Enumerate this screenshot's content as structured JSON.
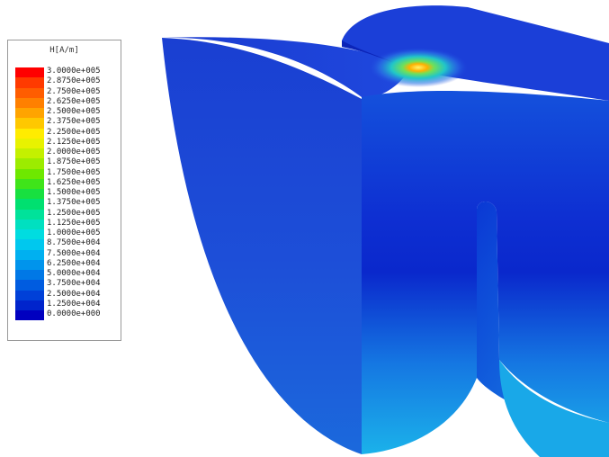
{
  "legend": {
    "title": "H[A/m]",
    "entries": [
      {
        "label": "3.0000e+005",
        "color": "#ff0000"
      },
      {
        "label": "2.8750e+005",
        "color": "#ff3a00"
      },
      {
        "label": "2.7500e+005",
        "color": "#ff5d00"
      },
      {
        "label": "2.6250e+005",
        "color": "#ff8000"
      },
      {
        "label": "2.5000e+005",
        "color": "#ffa400"
      },
      {
        "label": "2.3750e+005",
        "color": "#ffc800"
      },
      {
        "label": "2.2500e+005",
        "color": "#ffec00"
      },
      {
        "label": "2.1250e+005",
        "color": "#e8f200"
      },
      {
        "label": "2.0000e+005",
        "color": "#c4f000"
      },
      {
        "label": "1.8750e+005",
        "color": "#9cec00"
      },
      {
        "label": "1.7500e+005",
        "color": "#6ee800"
      },
      {
        "label": "1.6250e+005",
        "color": "#3fe41a"
      },
      {
        "label": "1.5000e+005",
        "color": "#18e040"
      },
      {
        "label": "1.3750e+005",
        "color": "#00e070"
      },
      {
        "label": "1.2500e+005",
        "color": "#00e29a"
      },
      {
        "label": "1.1250e+005",
        "color": "#00e0c0"
      },
      {
        "label": "1.0000e+005",
        "color": "#00dce0"
      },
      {
        "label": "8.7500e+004",
        "color": "#00c8ee"
      },
      {
        "label": "7.5000e+004",
        "color": "#00b0f0"
      },
      {
        "label": "6.2500e+004",
        "color": "#0094ec"
      },
      {
        "label": "5.0000e+004",
        "color": "#0078e6"
      },
      {
        "label": "3.7500e+004",
        "color": "#005ce0"
      },
      {
        "label": "2.5000e+004",
        "color": "#0040d8"
      },
      {
        "label": "1.2500e+004",
        "color": "#0024cc"
      },
      {
        "label": "0.0000e+000",
        "color": "#0000c0"
      }
    ]
  },
  "model": {
    "colors": {
      "top_left": "#1a3fd6",
      "top_right": "#1b3fd8",
      "front_face_top": "#1452e0",
      "front_face_mid": "#0a2bd0",
      "front_face_bottom": "#18a4e6",
      "curved_face_top": "#1a40d0",
      "curved_face_bottom": "#1a62d8",
      "slot_face": "#0f5ad8",
      "hotspot_core": "#ffb300",
      "hotspot_ring": "#36d38a"
    }
  }
}
